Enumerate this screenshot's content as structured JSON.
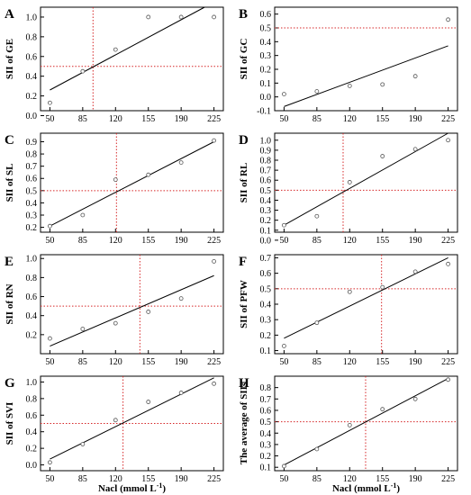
{
  "x_axis_label": "Nacl (mmol L",
  "x_axis_label_sup": "-1",
  "x_axis_label_close": ")",
  "chart_data": [
    {
      "panel": "A",
      "type": "scatter",
      "ylabel": "SII of GE",
      "x": [
        50,
        85,
        120,
        155,
        190,
        225
      ],
      "y": [
        0.13,
        0.45,
        0.67,
        1.0,
        1.0,
        1.0
      ],
      "fit": {
        "x": [
          50,
          215
        ],
        "y": [
          0.26,
          1.1
        ]
      },
      "threshold_y": 0.5,
      "threshold_x": 96,
      "xticks": [
        50,
        85,
        120,
        155,
        190,
        225
      ],
      "yticks": [
        0.0,
        0.2,
        0.4,
        0.6,
        0.8,
        1.0
      ],
      "ylim": [
        0.05,
        1.1
      ],
      "xlim": [
        40,
        235
      ]
    },
    {
      "panel": "B",
      "type": "scatter",
      "ylabel": "SII of GC",
      "x": [
        50,
        85,
        120,
        155,
        190,
        225
      ],
      "y": [
        0.02,
        0.04,
        0.08,
        0.09,
        0.15,
        0.56
      ],
      "fit": {
        "x": [
          50,
          225
        ],
        "y": [
          -0.07,
          0.37
        ]
      },
      "threshold_y": 0.5,
      "threshold_x": null,
      "xticks": [
        50,
        85,
        120,
        155,
        190,
        225
      ],
      "yticks": [
        -0.1,
        0.0,
        0.1,
        0.2,
        0.3,
        0.4,
        0.5,
        0.6
      ],
      "ylim": [
        -0.1,
        0.65
      ],
      "xlim": [
        40,
        235
      ]
    },
    {
      "panel": "C",
      "type": "scatter",
      "ylabel": "SII of SL",
      "x": [
        50,
        85,
        120,
        155,
        190,
        225
      ],
      "y": [
        0.21,
        0.3,
        0.59,
        0.63,
        0.73,
        0.91
      ],
      "fit": {
        "x": [
          50,
          225
        ],
        "y": [
          0.21,
          0.9
        ]
      },
      "threshold_y": 0.5,
      "threshold_x": 121,
      "xticks": [
        50,
        85,
        120,
        155,
        190,
        225
      ],
      "yticks": [
        0.2,
        0.3,
        0.4,
        0.5,
        0.6,
        0.7,
        0.8,
        0.9
      ],
      "ylim": [
        0.16,
        0.97
      ],
      "xlim": [
        40,
        235
      ]
    },
    {
      "panel": "D",
      "type": "scatter",
      "ylabel": "SII of RL",
      "x": [
        50,
        85,
        120,
        155,
        190,
        225
      ],
      "y": [
        0.15,
        0.24,
        0.58,
        0.84,
        0.91,
        1.0
      ],
      "fit": {
        "x": [
          50,
          225
        ],
        "y": [
          0.15,
          1.07
        ]
      },
      "threshold_y": 0.5,
      "threshold_x": 113,
      "xticks": [
        50,
        85,
        120,
        155,
        190,
        225
      ],
      "yticks": [
        0.0,
        0.1,
        0.2,
        0.3,
        0.4,
        0.5,
        0.6,
        0.7,
        0.8,
        0.9,
        1.0
      ],
      "ylim": [
        0.08,
        1.07
      ],
      "xlim": [
        40,
        235
      ]
    },
    {
      "panel": "E",
      "type": "scatter",
      "ylabel": "SII of RN",
      "x": [
        50,
        85,
        120,
        155,
        190,
        225
      ],
      "y": [
        0.16,
        0.26,
        0.32,
        0.44,
        0.58,
        0.97
      ],
      "fit": {
        "x": [
          50,
          225
        ],
        "y": [
          0.08,
          0.82
        ]
      },
      "threshold_y": 0.5,
      "threshold_x": 146,
      "xticks": [
        50,
        85,
        120,
        155,
        190,
        225
      ],
      "yticks": [
        0.2,
        0.4,
        0.6,
        0.8,
        1.0
      ],
      "ylim": [
        0.0,
        1.04
      ],
      "xlim": [
        40,
        235
      ]
    },
    {
      "panel": "F",
      "type": "scatter",
      "ylabel": "SII of PFW",
      "x": [
        50,
        85,
        120,
        155,
        190,
        225
      ],
      "y": [
        0.13,
        0.28,
        0.48,
        0.51,
        0.61,
        0.66
      ],
      "fit": {
        "x": [
          50,
          225
        ],
        "y": [
          0.18,
          0.7
        ]
      },
      "threshold_y": 0.5,
      "threshold_x": 154,
      "xticks": [
        50,
        85,
        120,
        155,
        190,
        225
      ],
      "yticks": [
        0.1,
        0.2,
        0.3,
        0.4,
        0.5,
        0.6,
        0.7
      ],
      "ylim": [
        0.08,
        0.72
      ],
      "xlim": [
        40,
        235
      ]
    },
    {
      "panel": "G",
      "type": "scatter",
      "ylabel": "SII of SVI",
      "x": [
        50,
        85,
        120,
        155,
        190,
        225
      ],
      "y": [
        0.03,
        0.25,
        0.54,
        0.76,
        0.87,
        0.98
      ],
      "fit": {
        "x": [
          50,
          225
        ],
        "y": [
          0.07,
          1.05
        ]
      },
      "threshold_y": 0.5,
      "threshold_x": 128,
      "xticks": [
        50,
        85,
        120,
        155,
        190,
        225
      ],
      "yticks": [
        0.0,
        0.2,
        0.4,
        0.6,
        0.8,
        1.0
      ],
      "ylim": [
        -0.07,
        1.07
      ],
      "xlim": [
        40,
        235
      ]
    },
    {
      "panel": "H",
      "type": "scatter",
      "ylabel": "The average of SIIs",
      "x": [
        50,
        85,
        120,
        155,
        190,
        225
      ],
      "y": [
        0.11,
        0.26,
        0.47,
        0.61,
        0.7,
        0.87
      ],
      "fit": {
        "x": [
          50,
          225
        ],
        "y": [
          0.12,
          0.88
        ]
      },
      "threshold_y": 0.5,
      "threshold_x": 137,
      "xticks": [
        50,
        85,
        120,
        155,
        190,
        225
      ],
      "yticks": [
        0.1,
        0.2,
        0.3,
        0.4,
        0.5,
        0.6,
        0.7,
        0.8
      ],
      "ylim": [
        0.07,
        0.9
      ],
      "xlim": [
        40,
        235
      ]
    }
  ]
}
